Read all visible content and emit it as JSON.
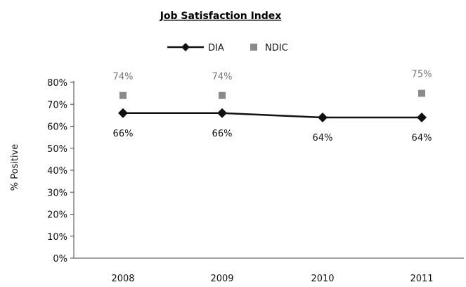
{
  "chart_data": {
    "type": "line",
    "title": "Job Satisfaction Index",
    "xlabel": "",
    "ylabel": "% Positive",
    "categories": [
      "2008",
      "2009",
      "2010",
      "2011"
    ],
    "ylim": [
      0,
      80
    ],
    "y_ticks": [
      "0%",
      "10%",
      "20%",
      "30%",
      "40%",
      "50%",
      "60%",
      "70%",
      "80%"
    ],
    "grid": false,
    "legend_position": "top",
    "series": [
      {
        "name": "DIA",
        "style": "line-with-diamond-markers",
        "color": "#111111",
        "values": [
          66,
          66,
          64,
          64
        ],
        "data_labels": [
          "66%",
          "66%",
          "64%",
          "64%"
        ]
      },
      {
        "name": "NDIC",
        "style": "square-markers",
        "color": "#8a8a8a",
        "values": [
          74,
          74,
          null,
          75
        ],
        "data_labels": [
          "74%",
          "74%",
          "",
          "75%"
        ]
      }
    ]
  }
}
